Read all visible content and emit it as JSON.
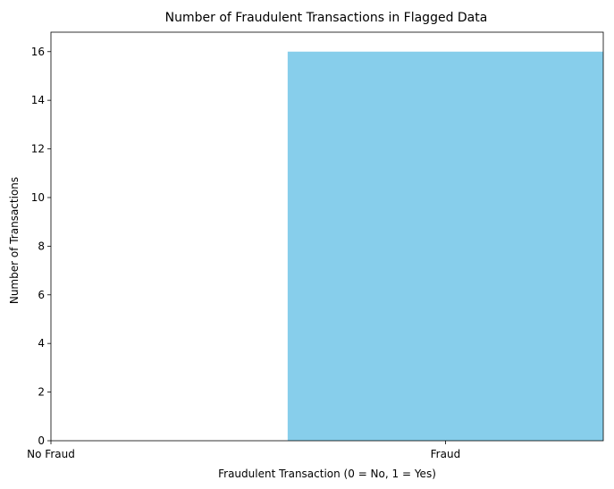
{
  "chart_data": {
    "type": "bar",
    "title": "Number of Fraudulent Transactions in Flagged Data",
    "xlabel": "Fraudulent Transaction (0 = No, 1 = Yes)",
    "ylabel": "Number of Transactions",
    "x": [
      0,
      1
    ],
    "values": [
      0,
      16
    ],
    "xticks": [
      {
        "value": 0,
        "label": "No Fraud"
      },
      {
        "value": 1,
        "label": "Fraud"
      }
    ],
    "yticks": [
      0,
      2,
      4,
      6,
      8,
      10,
      12,
      14,
      16
    ],
    "ylim": [
      0,
      16.8
    ],
    "xlim": [
      0,
      1.4
    ],
    "bar_color": "#87ceeb",
    "grid": false,
    "legend": "none"
  }
}
